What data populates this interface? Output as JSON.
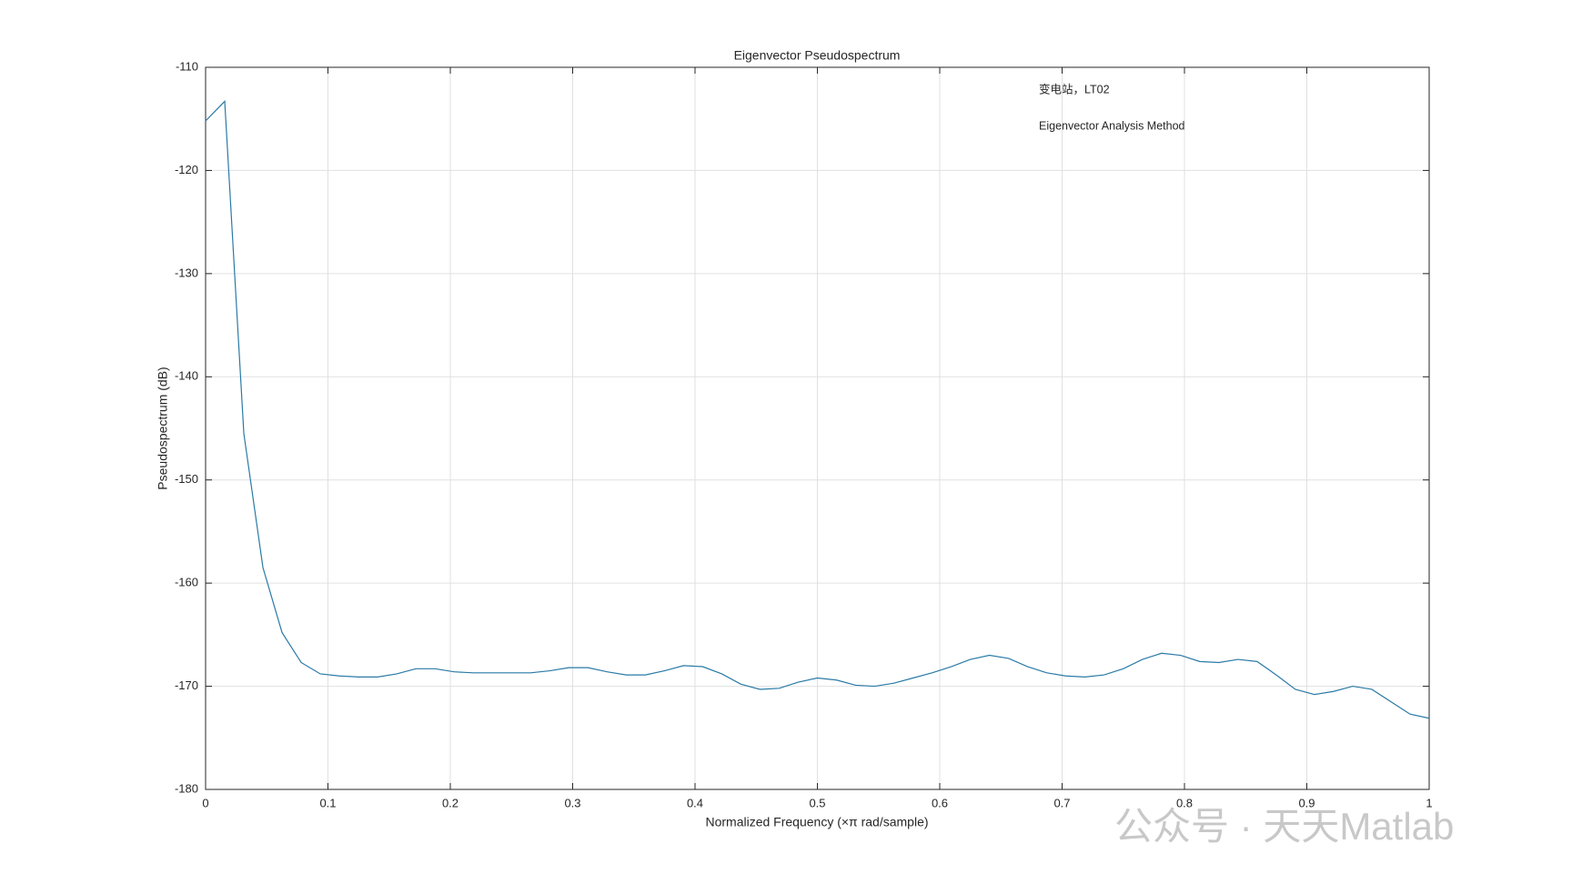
{
  "chart_data": {
    "type": "line",
    "title": "Eigenvector Pseudospectrum",
    "xlabel": "Normalized Frequency  (×π rad/sample)",
    "ylabel": "Pseudospectrum (dB)",
    "annotations": [
      "变电站，LT02",
      "Eigenvector Analysis Method"
    ],
    "watermark": "公众号 · 天天Matlab",
    "color": "#2a7aa6",
    "grid": true,
    "xlim": [
      0,
      1
    ],
    "xticks": [
      0,
      0.1,
      0.2,
      0.3,
      0.4,
      0.5,
      0.6,
      0.7,
      0.8,
      0.9,
      1
    ],
    "ylim": [
      -180,
      -110
    ],
    "yticks": [
      -180,
      -170,
      -160,
      -150,
      -140,
      -130,
      -120,
      -110
    ],
    "x": [
      0,
      0.015625,
      0.03125,
      0.046875,
      0.0625,
      0.078125,
      0.09375,
      0.109375,
      0.125,
      0.140625,
      0.15625,
      0.171875,
      0.1875,
      0.203125,
      0.21875,
      0.234375,
      0.25,
      0.265625,
      0.28125,
      0.296875,
      0.3125,
      0.328125,
      0.34375,
      0.359375,
      0.375,
      0.390625,
      0.40625,
      0.421875,
      0.4375,
      0.453125,
      0.46875,
      0.484375,
      0.5,
      0.515625,
      0.53125,
      0.546875,
      0.5625,
      0.578125,
      0.59375,
      0.609375,
      0.625,
      0.640625,
      0.65625,
      0.671875,
      0.6875,
      0.703125,
      0.71875,
      0.734375,
      0.75,
      0.765625,
      0.78125,
      0.796875,
      0.8125,
      0.828125,
      0.84375,
      0.859375,
      0.875,
      0.890625,
      0.90625,
      0.921875,
      0.9375,
      0.953125,
      0.96875,
      0.984375,
      1
    ],
    "values": [
      -115.2,
      -113.3,
      -145.5,
      -158.5,
      -164.8,
      -167.7,
      -168.8,
      -169.0,
      -169.1,
      -169.1,
      -168.8,
      -168.3,
      -168.3,
      -168.6,
      -168.7,
      -168.7,
      -168.7,
      -168.7,
      -168.5,
      -168.2,
      -168.2,
      -168.6,
      -168.9,
      -168.9,
      -168.5,
      -168.0,
      -168.1,
      -168.8,
      -169.8,
      -170.3,
      -170.2,
      -169.6,
      -169.2,
      -169.4,
      -169.9,
      -170.0,
      -169.7,
      -169.2,
      -168.7,
      -168.1,
      -167.4,
      -167.0,
      -167.3,
      -168.1,
      -168.7,
      -169.0,
      -169.1,
      -168.9,
      -168.3,
      -167.4,
      -166.8,
      -167.0,
      -167.6,
      -167.7,
      -167.4,
      -167.6,
      -168.9,
      -170.3,
      -170.8,
      -170.5,
      -170.0,
      -170.3,
      -171.5,
      -172.7,
      -173.1
    ]
  }
}
